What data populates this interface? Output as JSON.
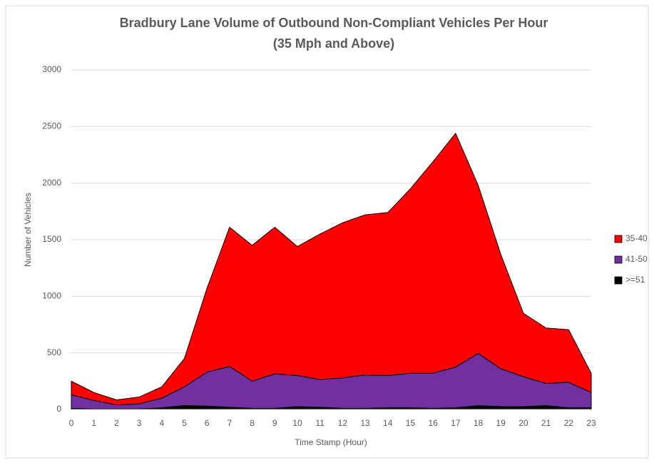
{
  "chart_data": {
    "type": "stacked_area",
    "title": "Bradbury Lane Volume of Outbound Non-Compliant Vehicles Per Hour",
    "subtitle": "(35 Mph and Above)",
    "x_label": "Time Stamp (Hour)",
    "y_label": "Number of Vehicles",
    "x": [
      0,
      1,
      2,
      3,
      4,
      5,
      6,
      7,
      8,
      9,
      10,
      11,
      12,
      13,
      14,
      15,
      16,
      17,
      18,
      19,
      20,
      21,
      22,
      23
    ],
    "xlim": [
      0,
      23
    ],
    "xticks": [
      0,
      1,
      2,
      3,
      4,
      5,
      6,
      7,
      8,
      9,
      10,
      11,
      12,
      13,
      14,
      15,
      16,
      17,
      18,
      19,
      20,
      21,
      22,
      23
    ],
    "ylim": [
      0,
      3000
    ],
    "yticks": [
      0,
      500,
      1000,
      1500,
      2000,
      2500,
      3000
    ],
    "grid": true,
    "legend": "right",
    "series": [
      {
        "name": ">=51",
        "color": "#000000",
        "values": [
          10,
          5,
          5,
          5,
          15,
          35,
          30,
          20,
          10,
          10,
          25,
          20,
          10,
          10,
          15,
          15,
          10,
          15,
          35,
          25,
          25,
          35,
          15,
          15
        ]
      },
      {
        "name": "41-50",
        "color": "#7030a0",
        "values": [
          120,
          75,
          35,
          45,
          85,
          165,
          300,
          360,
          240,
          305,
          275,
          245,
          270,
          295,
          285,
          305,
          310,
          360,
          460,
          335,
          265,
          195,
          225,
          135
        ]
      },
      {
        "name": "35-40",
        "color": "#ff0000",
        "values": [
          120,
          70,
          45,
          60,
          100,
          250,
          740,
          1230,
          1200,
          1295,
          1140,
          1285,
          1370,
          1415,
          1440,
          1630,
          1870,
          2065,
          1485,
          1010,
          560,
          490,
          465,
          170
        ]
      }
    ]
  }
}
